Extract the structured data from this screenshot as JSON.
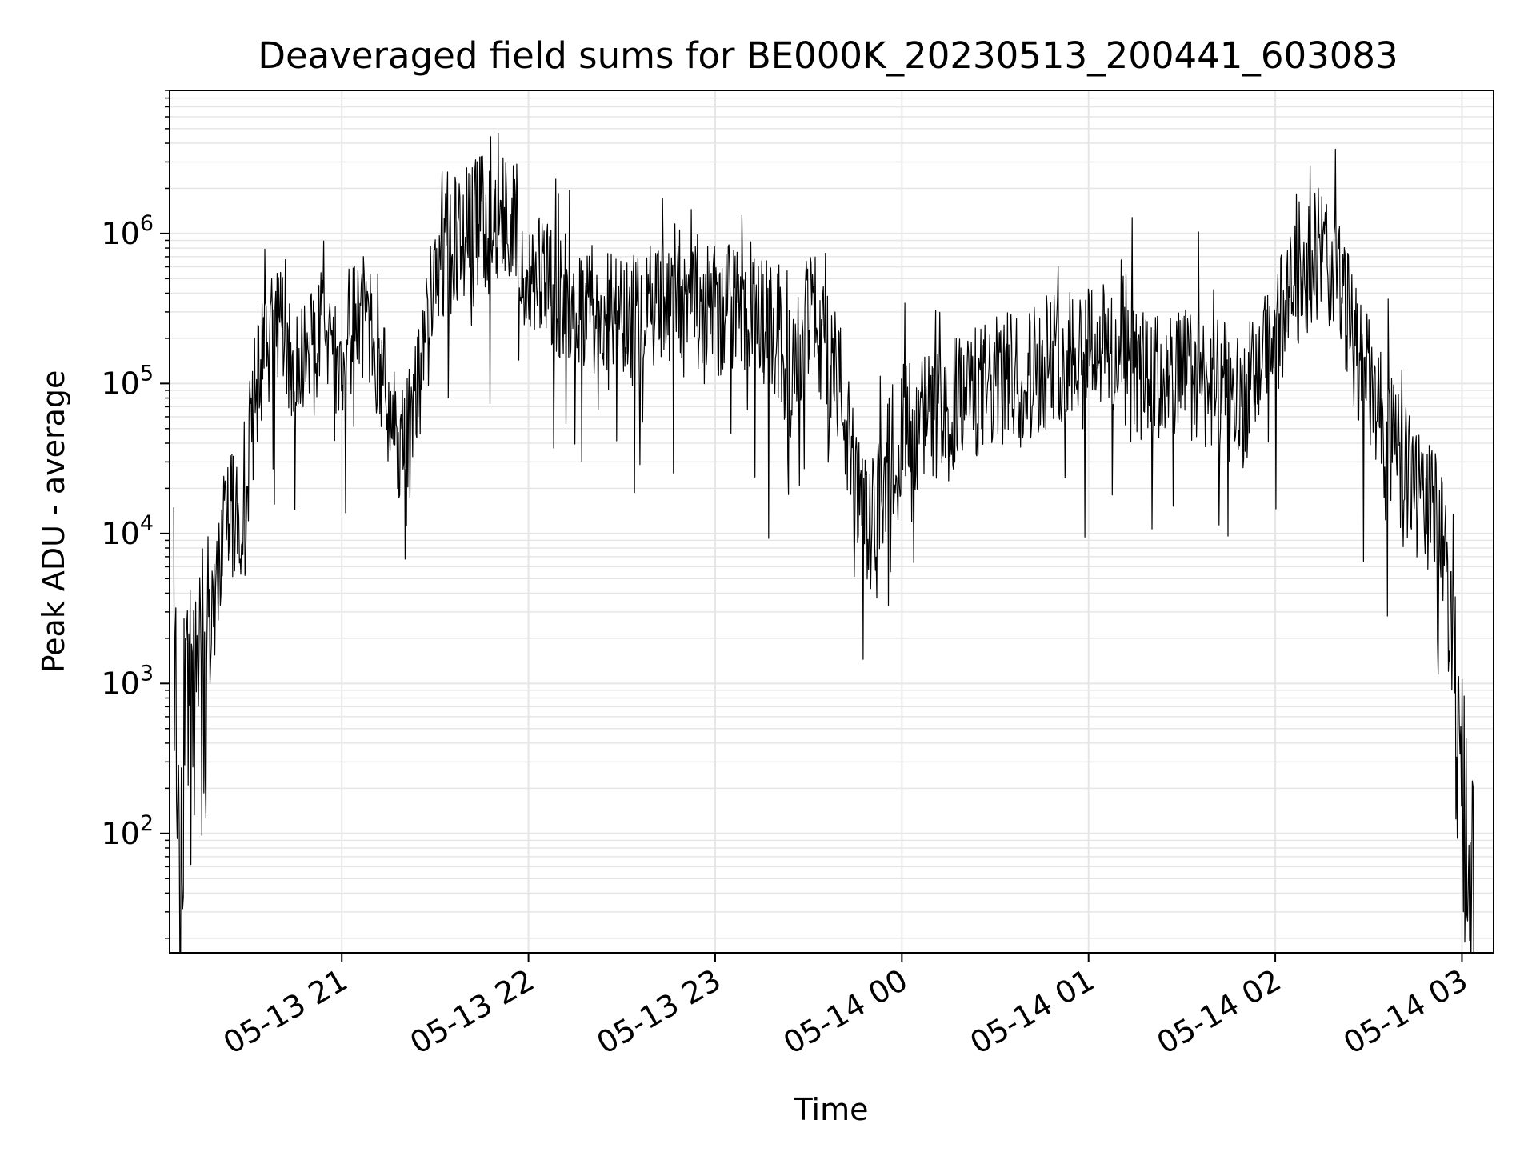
{
  "chart_data": {
    "type": "line",
    "title": "Deaveraged field sums for BE000K_20230513_200441_603083",
    "xlabel": "Time",
    "ylabel": "Peak ADU - average",
    "y_scale": "log",
    "ylim": [
      16,
      9000000
    ],
    "xlim": [
      "2023-05-13 20:04:40",
      "2023-05-14 03:10:10"
    ],
    "grid": true,
    "line_color": "#000000",
    "grid_color": "#e6e6e6",
    "x_ticks": [
      {
        "value": "2023-05-13 21:00",
        "label": "05-13 21"
      },
      {
        "value": "2023-05-13 22:00",
        "label": "05-13 22"
      },
      {
        "value": "2023-05-13 23:00",
        "label": "05-13 23"
      },
      {
        "value": "2023-05-14 00:00",
        "label": "05-14 00"
      },
      {
        "value": "2023-05-14 01:00",
        "label": "05-14 01"
      },
      {
        "value": "2023-05-14 02:00",
        "label": "05-14 02"
      },
      {
        "value": "2023-05-14 03:00",
        "label": "05-14 03"
      }
    ],
    "y_ticks": [
      {
        "value": 100,
        "base": "10",
        "exp": "2"
      },
      {
        "value": 1000,
        "base": "10",
        "exp": "3"
      },
      {
        "value": 10000,
        "base": "10",
        "exp": "4"
      },
      {
        "value": 100000,
        "base": "10",
        "exp": "5"
      },
      {
        "value": 1000000,
        "base": "10",
        "exp": "6"
      }
    ],
    "series": [
      {
        "x": [
          "2023-05-13 20:06",
          "2023-05-13 20:08",
          "2023-05-13 20:10",
          "2023-05-13 20:12",
          "2023-05-13 20:14",
          "2023-05-13 20:16",
          "2023-05-13 20:20",
          "2023-05-13 20:24",
          "2023-05-13 20:28",
          "2023-05-13 20:32",
          "2023-05-13 20:36",
          "2023-05-13 20:40",
          "2023-05-13 20:45",
          "2023-05-13 20:50",
          "2023-05-13 20:55",
          "2023-05-13 21:00",
          "2023-05-13 21:05",
          "2023-05-13 21:10",
          "2023-05-13 21:15",
          "2023-05-13 21:20",
          "2023-05-13 21:25",
          "2023-05-13 21:30",
          "2023-05-13 21:35",
          "2023-05-13 21:40",
          "2023-05-13 21:45",
          "2023-05-13 21:50",
          "2023-05-13 21:55",
          "2023-05-13 22:00",
          "2023-05-13 22:10",
          "2023-05-13 22:20",
          "2023-05-13 22:30",
          "2023-05-13 22:40",
          "2023-05-13 22:50",
          "2023-05-13 23:00",
          "2023-05-13 23:10",
          "2023-05-13 23:20",
          "2023-05-13 23:25",
          "2023-05-13 23:30",
          "2023-05-13 23:35",
          "2023-05-13 23:40",
          "2023-05-13 23:45",
          "2023-05-13 23:50",
          "2023-05-13 23:55",
          "2023-05-14 00:00",
          "2023-05-14 00:10",
          "2023-05-14 00:20",
          "2023-05-14 00:30",
          "2023-05-14 00:40",
          "2023-05-14 00:50",
          "2023-05-14 01:00",
          "2023-05-14 01:10",
          "2023-05-14 01:20",
          "2023-05-14 01:30",
          "2023-05-14 01:40",
          "2023-05-14 01:50",
          "2023-05-14 02:00",
          "2023-05-14 02:05",
          "2023-05-14 02:10",
          "2023-05-14 02:15",
          "2023-05-14 02:20",
          "2023-05-14 02:25",
          "2023-05-14 02:30",
          "2023-05-14 02:35",
          "2023-05-14 02:40",
          "2023-05-14 02:45",
          "2023-05-14 02:50",
          "2023-05-14 02:55",
          "2023-05-14 02:58",
          "2023-05-14 03:00",
          "2023-05-14 03:02",
          "2023-05-14 03:04"
        ],
        "values": [
          5000,
          20,
          2000,
          300,
          3000,
          800,
          5000,
          15000,
          8000,
          100000,
          200000,
          300000,
          100000,
          150000,
          200000,
          150000,
          300000,
          200000,
          80000,
          30000,
          100000,
          500000,
          800000,
          1000000,
          1200000,
          1000000,
          1500000,
          500000,
          400000,
          300000,
          250000,
          300000,
          400000,
          300000,
          350000,
          200000,
          100000,
          300000,
          200000,
          100000,
          20000,
          10000,
          30000,
          50000,
          60000,
          80000,
          100000,
          120000,
          150000,
          200000,
          150000,
          100000,
          120000,
          100000,
          80000,
          200000,
          400000,
          600000,
          800000,
          500000,
          200000,
          100000,
          50000,
          30000,
          20000,
          15000,
          8000,
          1000,
          200,
          40,
          30
        ]
      }
    ]
  }
}
